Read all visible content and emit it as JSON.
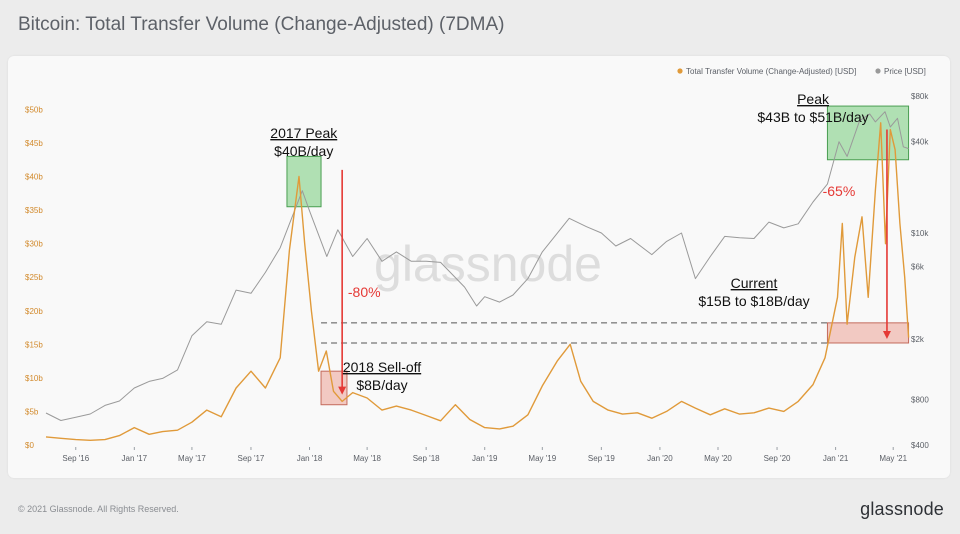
{
  "page_title": "Bitcoin: Total Transfer Volume (Change-Adjusted) (7DMA)",
  "footer": {
    "copyright": "© 2021 Glassnode. All Rights Reserved.",
    "logo": "glassnode"
  },
  "watermark": "glassnode",
  "colors": {
    "volume": "#e09a3a",
    "price": "#9a9a9a",
    "peak_box": "#56c25e",
    "selloff_box": "#e98f7f",
    "arrow": "#e53935",
    "ylabels_left": "#d28a2c"
  },
  "chart_data": {
    "type": "line",
    "title": "Bitcoin: Total Transfer Volume (Change-Adjusted) (7DMA)",
    "x_tick_labels": [
      "Sep '16",
      "Jan '17",
      "May '17",
      "Sep '17",
      "Jan '18",
      "May '18",
      "Sep '18",
      "Jan '19",
      "May '19",
      "Sep '19",
      "Jan '20",
      "May '20",
      "Sep '20",
      "Jan '21",
      "May '21"
    ],
    "y_left_ticks": [
      "$0",
      "$5b",
      "$10b",
      "$15b",
      "$20b",
      "$25b",
      "$30b",
      "$35b",
      "$40b",
      "$45b",
      "$50b"
    ],
    "y_left_range_billion_usd": [
      0,
      52
    ],
    "y_right_ticks": [
      "$400",
      "$800",
      "$2k",
      "$6k",
      "$10k",
      "$40k",
      "$80k"
    ],
    "y_right_range_usd_log": [
      400,
      80000
    ],
    "legend_position": "top-right",
    "series": [
      {
        "name": "Total Transfer Volume (Change-Adjusted) [USD]",
        "axis": "left",
        "unit": "billion USD",
        "points": [
          [
            "2016-07-01",
            1.2
          ],
          [
            "2016-08-01",
            1.0
          ],
          [
            "2016-09-01",
            0.8
          ],
          [
            "2016-10-01",
            0.7
          ],
          [
            "2016-11-01",
            0.8
          ],
          [
            "2016-12-01",
            1.4
          ],
          [
            "2017-01-01",
            2.6
          ],
          [
            "2017-02-01",
            1.6
          ],
          [
            "2017-03-01",
            2.0
          ],
          [
            "2017-04-01",
            2.2
          ],
          [
            "2017-05-01",
            3.4
          ],
          [
            "2017-06-01",
            5.2
          ],
          [
            "2017-07-01",
            4.2
          ],
          [
            "2017-08-01",
            8.5
          ],
          [
            "2017-09-01",
            11.0
          ],
          [
            "2017-10-01",
            8.5
          ],
          [
            "2017-11-01",
            13.0
          ],
          [
            "2017-11-20",
            29.0
          ],
          [
            "2017-12-10",
            40.0
          ],
          [
            "2017-12-22",
            30.0
          ],
          [
            "2018-01-05",
            20.0
          ],
          [
            "2018-01-20",
            11.0
          ],
          [
            "2018-02-05",
            14.0
          ],
          [
            "2018-02-20",
            8.0
          ],
          [
            "2018-03-10",
            6.5
          ],
          [
            "2018-04-01",
            7.8
          ],
          [
            "2018-05-01",
            7.0
          ],
          [
            "2018-06-01",
            5.2
          ],
          [
            "2018-07-01",
            5.8
          ],
          [
            "2018-08-01",
            5.2
          ],
          [
            "2018-09-01",
            4.4
          ],
          [
            "2018-10-01",
            3.6
          ],
          [
            "2018-11-01",
            6.0
          ],
          [
            "2018-12-01",
            3.8
          ],
          [
            "2019-01-01",
            2.6
          ],
          [
            "2019-02-01",
            2.4
          ],
          [
            "2019-03-01",
            2.8
          ],
          [
            "2019-04-01",
            4.5
          ],
          [
            "2019-05-01",
            8.8
          ],
          [
            "2019-06-01",
            12.5
          ],
          [
            "2019-06-28",
            15.0
          ],
          [
            "2019-07-20",
            9.5
          ],
          [
            "2019-08-15",
            6.5
          ],
          [
            "2019-09-15",
            5.2
          ],
          [
            "2019-10-15",
            4.6
          ],
          [
            "2019-11-15",
            4.8
          ],
          [
            "2019-12-15",
            4.0
          ],
          [
            "2020-01-15",
            5.0
          ],
          [
            "2020-02-15",
            6.5
          ],
          [
            "2020-03-15",
            5.5
          ],
          [
            "2020-04-15",
            4.5
          ],
          [
            "2020-05-15",
            5.4
          ],
          [
            "2020-06-15",
            4.6
          ],
          [
            "2020-07-15",
            4.8
          ],
          [
            "2020-08-15",
            5.5
          ],
          [
            "2020-09-15",
            5.0
          ],
          [
            "2020-10-15",
            6.5
          ],
          [
            "2020-11-15",
            9.0
          ],
          [
            "2020-12-10",
            13.0
          ],
          [
            "2021-01-05",
            22.0
          ],
          [
            "2021-01-15",
            33.0
          ],
          [
            "2021-01-25",
            18.0
          ],
          [
            "2021-02-10",
            28.0
          ],
          [
            "2021-02-25",
            34.0
          ],
          [
            "2021-03-10",
            22.0
          ],
          [
            "2021-03-25",
            38.0
          ],
          [
            "2021-04-05",
            48.0
          ],
          [
            "2021-04-15",
            30.0
          ],
          [
            "2021-04-25",
            47.0
          ],
          [
            "2021-05-05",
            44.0
          ],
          [
            "2021-05-15",
            33.0
          ],
          [
            "2021-05-25",
            25.0
          ],
          [
            "2021-06-02",
            16.0
          ]
        ]
      },
      {
        "name": "Price [USD]",
        "axis": "right",
        "unit": "USD",
        "points": [
          [
            "2016-07-01",
            650
          ],
          [
            "2016-08-01",
            580
          ],
          [
            "2016-09-01",
            610
          ],
          [
            "2016-10-01",
            640
          ],
          [
            "2016-11-01",
            730
          ],
          [
            "2016-12-01",
            780
          ],
          [
            "2017-01-01",
            950
          ],
          [
            "2017-02-01",
            1050
          ],
          [
            "2017-03-01",
            1100
          ],
          [
            "2017-04-01",
            1250
          ],
          [
            "2017-05-01",
            2100
          ],
          [
            "2017-06-01",
            2600
          ],
          [
            "2017-07-01",
            2500
          ],
          [
            "2017-08-01",
            4200
          ],
          [
            "2017-09-01",
            4000
          ],
          [
            "2017-10-01",
            5500
          ],
          [
            "2017-11-01",
            8000
          ],
          [
            "2017-12-17",
            19000
          ],
          [
            "2018-01-01",
            14000
          ],
          [
            "2018-02-06",
            7000
          ],
          [
            "2018-03-01",
            10500
          ],
          [
            "2018-04-01",
            7000
          ],
          [
            "2018-05-01",
            9200
          ],
          [
            "2018-06-01",
            6500
          ],
          [
            "2018-07-01",
            7500
          ],
          [
            "2018-08-01",
            6500
          ],
          [
            "2018-09-01",
            6500
          ],
          [
            "2018-10-01",
            6400
          ],
          [
            "2018-11-20",
            4400
          ],
          [
            "2018-12-15",
            3300
          ],
          [
            "2019-01-01",
            3800
          ],
          [
            "2019-02-01",
            3500
          ],
          [
            "2019-03-01",
            3900
          ],
          [
            "2019-04-01",
            5000
          ],
          [
            "2019-05-01",
            7500
          ],
          [
            "2019-06-26",
            12500
          ],
          [
            "2019-08-01",
            11000
          ],
          [
            "2019-09-01",
            10000
          ],
          [
            "2019-10-01",
            8200
          ],
          [
            "2019-11-01",
            9200
          ],
          [
            "2019-12-15",
            7200
          ],
          [
            "2020-01-15",
            8800
          ],
          [
            "2020-02-15",
            10000
          ],
          [
            "2020-03-15",
            5000
          ],
          [
            "2020-04-15",
            7000
          ],
          [
            "2020-05-15",
            9500
          ],
          [
            "2020-06-15",
            9300
          ],
          [
            "2020-07-15",
            9200
          ],
          [
            "2020-08-15",
            11800
          ],
          [
            "2020-09-15",
            10800
          ],
          [
            "2020-10-15",
            11500
          ],
          [
            "2020-11-15",
            16000
          ],
          [
            "2020-12-15",
            21000
          ],
          [
            "2021-01-08",
            40000
          ],
          [
            "2021-01-25",
            32000
          ],
          [
            "2021-02-20",
            55000
          ],
          [
            "2021-03-13",
            61000
          ],
          [
            "2021-03-25",
            54000
          ],
          [
            "2021-04-14",
            63000
          ],
          [
            "2021-04-25",
            50000
          ],
          [
            "2021-05-10",
            57000
          ],
          [
            "2021-05-22",
            37000
          ],
          [
            "2021-06-02",
            36000
          ]
        ]
      }
    ],
    "annotations": {
      "peak_2017": [
        "2017 Peak",
        "$40B/day"
      ],
      "selloff_2018": [
        "2018 Sell-off",
        "$8B/day"
      ],
      "drop_2018": "-80%",
      "peak_2021": [
        "Peak",
        "$43B to $51B/day"
      ],
      "drop_2021": "-65%",
      "current": [
        "Current",
        "$15B to $18B/day"
      ]
    }
  }
}
